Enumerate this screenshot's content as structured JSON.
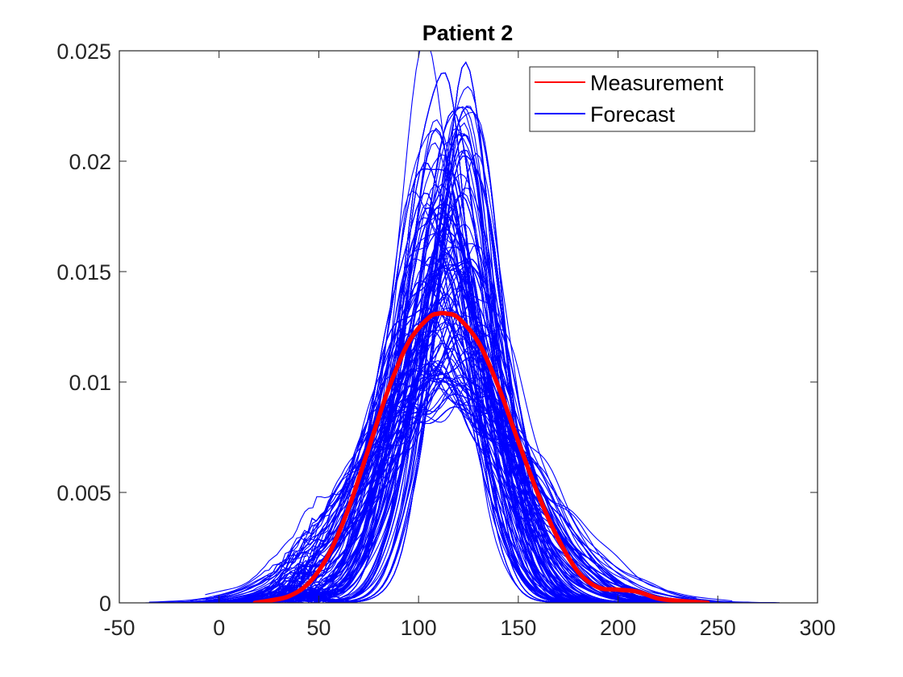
{
  "chart_data": {
    "type": "line",
    "title": "Patient 2",
    "xlabel": "",
    "ylabel": "",
    "xlim": [
      -50,
      300
    ],
    "ylim": [
      0,
      0.025
    ],
    "xticks": [
      -50,
      0,
      50,
      100,
      150,
      200,
      250,
      300
    ],
    "xtick_labels": [
      "-50",
      "0",
      "50",
      "100",
      "150",
      "200",
      "250",
      "300"
    ],
    "yticks": [
      0,
      0.005,
      0.01,
      0.015,
      0.02,
      0.025
    ],
    "ytick_labels": [
      "0",
      "0.005",
      "0.01",
      "0.015",
      "0.02",
      "0.025"
    ],
    "grid": false,
    "legend_position": "top-right",
    "series": [
      {
        "name": "Measurement",
        "color": "#ff0000",
        "x": [
          18,
          25,
          35,
          45,
          55,
          65,
          75,
          85,
          95,
          105,
          110,
          114,
          120,
          130,
          140,
          150,
          160,
          170,
          180,
          190,
          200,
          210,
          220,
          230,
          245
        ],
        "y": [
          0.0,
          0.0001,
          0.0003,
          0.0009,
          0.0022,
          0.0043,
          0.007,
          0.0097,
          0.0118,
          0.0129,
          0.0131,
          0.0131,
          0.0129,
          0.0118,
          0.0098,
          0.0073,
          0.0049,
          0.0029,
          0.0014,
          0.0007,
          0.0006,
          0.0005,
          0.0002,
          0.0001,
          0.0
        ]
      },
      {
        "name": "Forecast",
        "color": "#0000ff",
        "ensemble_count": 300,
        "x_range": [
          -37,
          283
        ],
        "peak_center": 114,
        "peak_range": [
          0.009,
          0.0228
        ]
      }
    ]
  }
}
